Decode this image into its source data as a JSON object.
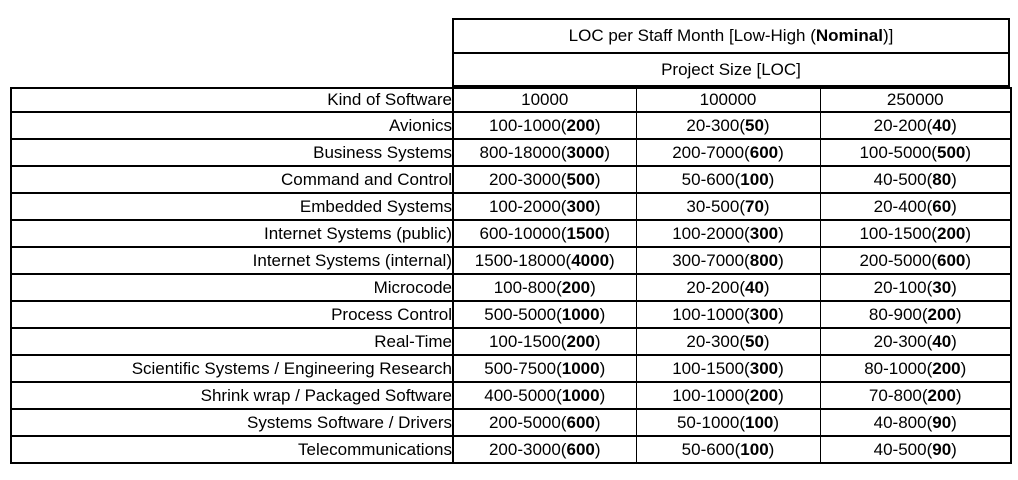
{
  "header": {
    "title_prefix": "LOC per Staff Month [Low-High (",
    "title_bold": "Nominal",
    "title_suffix": ")]",
    "subtitle": "Project Size [LOC]"
  },
  "table": {
    "kind_header": "Kind of Software",
    "columns": [
      "10000",
      "100000",
      "250000"
    ],
    "rows": [
      {
        "label": "Avionics",
        "cells": [
          {
            "range": "100-1000",
            "nominal": "200"
          },
          {
            "range": "20-300",
            "nominal": "50"
          },
          {
            "range": "20-200",
            "nominal": "40"
          }
        ]
      },
      {
        "label": "Business Systems",
        "cells": [
          {
            "range": "800-18000",
            "nominal": "3000"
          },
          {
            "range": "200-7000",
            "nominal": "600"
          },
          {
            "range": "100-5000",
            "nominal": "500"
          }
        ]
      },
      {
        "label": "Command and Control",
        "cells": [
          {
            "range": "200-3000",
            "nominal": "500"
          },
          {
            "range": "50-600",
            "nominal": "100"
          },
          {
            "range": "40-500",
            "nominal": "80"
          }
        ]
      },
      {
        "label": "Embedded Systems",
        "cells": [
          {
            "range": "100-2000",
            "nominal": "300"
          },
          {
            "range": "30-500",
            "nominal": "70"
          },
          {
            "range": "20-400",
            "nominal": "60"
          }
        ]
      },
      {
        "label": "Internet Systems (public)",
        "cells": [
          {
            "range": "600-10000",
            "nominal": "1500"
          },
          {
            "range": "100-2000",
            "nominal": "300"
          },
          {
            "range": "100-1500",
            "nominal": "200"
          }
        ]
      },
      {
        "label": "Internet Systems (internal)",
        "cells": [
          {
            "range": "1500-18000",
            "nominal": "4000"
          },
          {
            "range": "300-7000",
            "nominal": "800"
          },
          {
            "range": "200-5000",
            "nominal": "600"
          }
        ]
      },
      {
        "label": "Microcode",
        "cells": [
          {
            "range": "100-800",
            "nominal": "200"
          },
          {
            "range": "20-200",
            "nominal": "40"
          },
          {
            "range": "20-100",
            "nominal": "30"
          }
        ]
      },
      {
        "label": "Process Control",
        "cells": [
          {
            "range": "500-5000",
            "nominal": "1000"
          },
          {
            "range": "100-1000",
            "nominal": "300"
          },
          {
            "range": "80-900",
            "nominal": "200"
          }
        ]
      },
      {
        "label": "Real-Time",
        "cells": [
          {
            "range": "100-1500",
            "nominal": "200"
          },
          {
            "range": "20-300",
            "nominal": "50"
          },
          {
            "range": "20-300",
            "nominal": "40"
          }
        ]
      },
      {
        "label": "Scientific Systems / Engineering Research",
        "cells": [
          {
            "range": "500-7500",
            "nominal": "1000"
          },
          {
            "range": "100-1500",
            "nominal": "300"
          },
          {
            "range": "80-1000",
            "nominal": "200"
          }
        ]
      },
      {
        "label": "Shrink wrap / Packaged Software",
        "cells": [
          {
            "range": "400-5000",
            "nominal": "1000"
          },
          {
            "range": "100-1000",
            "nominal": "200"
          },
          {
            "range": "70-800",
            "nominal": "200"
          }
        ]
      },
      {
        "label": "Systems Software / Drivers",
        "cells": [
          {
            "range": "200-5000",
            "nominal": "600"
          },
          {
            "range": "50-1000",
            "nominal": "100"
          },
          {
            "range": "40-800",
            "nominal": "90"
          }
        ]
      },
      {
        "label": "Telecommunications",
        "cells": [
          {
            "range": "200-3000",
            "nominal": "600"
          },
          {
            "range": "50-600",
            "nominal": "100"
          },
          {
            "range": "40-500",
            "nominal": "90"
          }
        ]
      }
    ]
  },
  "colors": {
    "border": "#000000",
    "background": "#ffffff",
    "text": "#000000"
  }
}
